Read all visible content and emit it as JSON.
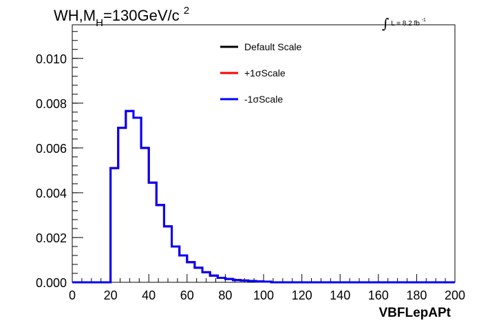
{
  "title": {
    "main_prefix": "WH,M",
    "main_sub": "H",
    "main_mid": "=130GeV/c",
    "main_sup": "2"
  },
  "lumi": {
    "symbol": "∫",
    "text": "L = 8.2 fb",
    "sup": "-1"
  },
  "chart_data": {
    "type": "line",
    "style": "step-histogram",
    "xlabel": "VBFLepAPt",
    "ylabel": "",
    "xlim": [
      0,
      200
    ],
    "ylim": [
      0,
      0.0115
    ],
    "x_ticks": [
      "0",
      "20",
      "40",
      "60",
      "80",
      "100",
      "120",
      "140",
      "160",
      "180",
      "200"
    ],
    "y_ticks": [
      "0.000",
      "0.002",
      "0.004",
      "0.006",
      "0.008",
      "0.010"
    ],
    "bin_edges": [
      0,
      4,
      8,
      12,
      16,
      20,
      24,
      28,
      32,
      36,
      40,
      44,
      48,
      52,
      56,
      60,
      64,
      68,
      72,
      76,
      80,
      84,
      88,
      92,
      96,
      100,
      104,
      108,
      112,
      116,
      120,
      124,
      128,
      132,
      136,
      140,
      144,
      148,
      152,
      156,
      160,
      164,
      168,
      172,
      176,
      180,
      184,
      188,
      192,
      196,
      200
    ],
    "series": [
      {
        "name": "Default Scale",
        "color": "#000000",
        "values": [
          0,
          0,
          0,
          0,
          0,
          0.0051,
          0.0069,
          0.00765,
          0.00735,
          0.006,
          0.00445,
          0.00345,
          0.0025,
          0.0016,
          0.0012,
          0.0009,
          0.00065,
          0.00045,
          0.0003,
          0.0002,
          0.00015,
          0.0001,
          8e-05,
          6e-05,
          4e-05,
          3e-05,
          0,
          0,
          0,
          0,
          0,
          0,
          0,
          0,
          0,
          0,
          0,
          0,
          0,
          0,
          0,
          0,
          0,
          0,
          0,
          0,
          0,
          0,
          0,
          0
        ]
      },
      {
        "name": "+1σScale",
        "color": "#ff0000",
        "values": [
          0,
          0,
          0,
          0,
          0,
          0.0051,
          0.0069,
          0.00765,
          0.00735,
          0.006,
          0.00445,
          0.00345,
          0.0025,
          0.0016,
          0.0012,
          0.0009,
          0.00065,
          0.00045,
          0.0003,
          0.0002,
          0.00015,
          0.0001,
          8e-05,
          6e-05,
          4e-05,
          3e-05,
          0,
          0,
          0,
          0,
          0,
          0,
          0,
          0,
          0,
          0,
          0,
          0,
          0,
          0,
          0,
          0,
          0,
          0,
          0,
          0,
          0,
          0,
          0,
          0
        ]
      },
      {
        "name": "-1σScale",
        "color": "#0000ff",
        "values": [
          0,
          0,
          0,
          0,
          0,
          0.0051,
          0.0069,
          0.00765,
          0.00735,
          0.006,
          0.00445,
          0.00345,
          0.0025,
          0.0016,
          0.0012,
          0.0009,
          0.00065,
          0.00045,
          0.0003,
          0.0002,
          0.00015,
          0.0001,
          8e-05,
          6e-05,
          4e-05,
          3e-05,
          0,
          0,
          0,
          0,
          0,
          0,
          0,
          0,
          0,
          0,
          0,
          0,
          0,
          0,
          0,
          0,
          0,
          0,
          0,
          0,
          0,
          0,
          0,
          0
        ]
      }
    ],
    "legend_position": "top-right",
    "grid": false
  }
}
